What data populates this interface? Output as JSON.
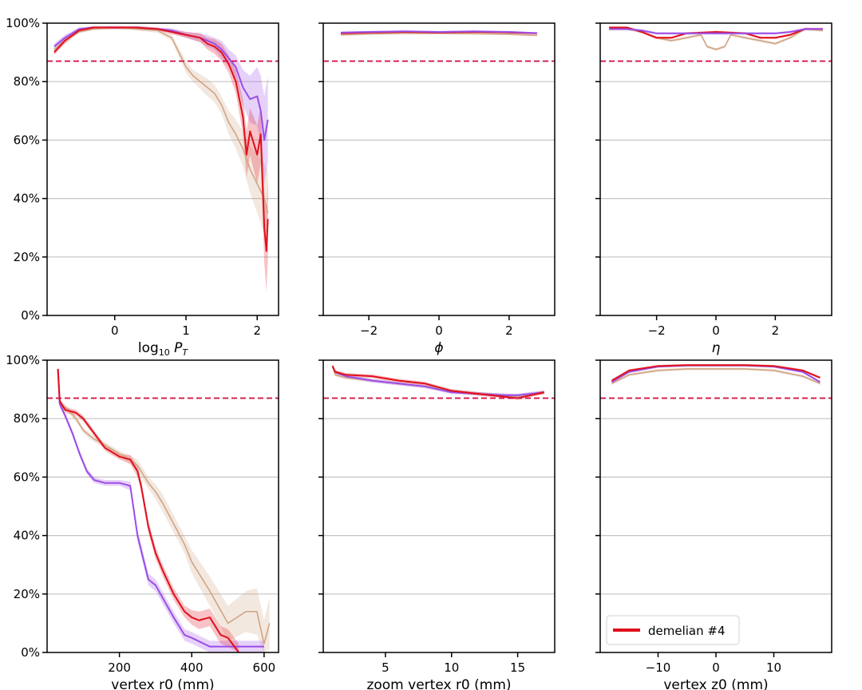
{
  "colors": {
    "red": "#e0101c",
    "purple": "#9b4de8",
    "tan": "#d0a484",
    "reference": "#d4164a",
    "grid": "#c4c4c4"
  },
  "legend": {
    "label": "demelian #4",
    "panel": 5,
    "position": "lower-left"
  },
  "chart_data": [
    {
      "type": "line",
      "xlabel": "log₁₀ P_T",
      "xlim": [
        -0.95,
        2.3
      ],
      "ylim": [
        0,
        100
      ],
      "xticks": [
        0,
        1,
        2
      ],
      "yticks": [
        0,
        20,
        40,
        60,
        80,
        100
      ],
      "show_y_ticklabels": true,
      "grid": "y",
      "reference_y": 87,
      "series": [
        {
          "color_key": "tan",
          "x": [
            -0.85,
            -0.7,
            -0.5,
            -0.3,
            0,
            0.3,
            0.6,
            0.8,
            0.9,
            1.0,
            1.1,
            1.2,
            1.3,
            1.4,
            1.5,
            1.6,
            1.7,
            1.8,
            1.9,
            2.0,
            2.1,
            2.15
          ],
          "y": [
            91,
            94,
            97,
            98,
            98.5,
            98,
            97.5,
            95,
            90,
            85,
            82,
            80,
            78,
            76,
            72,
            66,
            62,
            57,
            50,
            45,
            40,
            35
          ],
          "band": [
            1,
            1,
            0.5,
            0.5,
            0.5,
            0.5,
            0.8,
            1,
            1.5,
            2,
            2,
            2.5,
            3,
            3,
            3,
            4,
            5,
            6,
            8,
            10,
            12,
            14
          ]
        },
        {
          "color_key": "purple",
          "x": [
            -0.85,
            -0.7,
            -0.5,
            -0.3,
            0,
            0.3,
            0.6,
            0.8,
            1.0,
            1.2,
            1.3,
            1.4,
            1.5,
            1.6,
            1.7,
            1.8,
            1.9,
            2.0,
            2.05,
            2.1,
            2.15
          ],
          "y": [
            92,
            95,
            98,
            98.5,
            98.5,
            98.5,
            98,
            97.5,
            96,
            95,
            94,
            93,
            91,
            88,
            85,
            78,
            74,
            75,
            70,
            60,
            67
          ],
          "band": [
            1,
            1,
            0.5,
            0.5,
            0.5,
            0.5,
            0.5,
            0.8,
            1,
            1.5,
            2,
            2,
            3,
            3,
            4,
            6,
            8,
            10,
            12,
            15,
            15
          ]
        },
        {
          "color_key": "red",
          "x": [
            -0.85,
            -0.7,
            -0.5,
            -0.3,
            0,
            0.3,
            0.6,
            0.8,
            1.0,
            1.2,
            1.3,
            1.4,
            1.5,
            1.6,
            1.7,
            1.8,
            1.85,
            1.9,
            2.0,
            2.05,
            2.1,
            2.13,
            2.15
          ],
          "y": [
            90,
            94,
            97.5,
            98.5,
            98.5,
            98.5,
            98,
            97,
            96,
            95,
            93,
            92,
            90,
            86,
            80,
            68,
            55,
            63,
            55,
            62,
            30,
            22,
            33
          ],
          "band": [
            1,
            1,
            0.5,
            0.5,
            0.5,
            0.5,
            0.5,
            0.8,
            1,
            1.5,
            2,
            2.5,
            3,
            3,
            4,
            6,
            8,
            8,
            10,
            10,
            12,
            14,
            14
          ]
        }
      ]
    },
    {
      "type": "line",
      "xlabel": "ϕ",
      "xlim": [
        -3.3,
        3.3
      ],
      "ylim": [
        0,
        100
      ],
      "xticks": [
        -2,
        0,
        2
      ],
      "yticks": [
        0,
        20,
        40,
        60,
        80,
        100
      ],
      "show_y_ticklabels": false,
      "grid": "y",
      "reference_y": 87,
      "series": [
        {
          "color_key": "tan",
          "x": [
            -2.8,
            -2,
            -1,
            0,
            1,
            2,
            2.8
          ],
          "y": [
            96,
            96.3,
            96.5,
            96.5,
            96.4,
            96.2,
            95.8
          ],
          "band": [
            0.3,
            0.3,
            0.3,
            0.3,
            0.3,
            0.3,
            0.3
          ]
        },
        {
          "color_key": "red",
          "x": [
            -2.8,
            -2,
            -1,
            0,
            1,
            2,
            2.8
          ],
          "y": [
            96.5,
            96.8,
            97,
            96.8,
            97,
            96.8,
            96.5
          ],
          "band": [
            0.3,
            0.3,
            0.3,
            0.3,
            0.3,
            0.3,
            0.3
          ]
        },
        {
          "color_key": "purple",
          "x": [
            -2.8,
            -2,
            -1,
            0,
            1,
            2,
            2.8
          ],
          "y": [
            96.8,
            97,
            97.2,
            97,
            97.2,
            97,
            96.6
          ],
          "band": [
            0.3,
            0.3,
            0.3,
            0.3,
            0.3,
            0.3,
            0.3
          ]
        }
      ]
    },
    {
      "type": "line",
      "xlabel": "η",
      "xlim": [
        -3.9,
        3.9
      ],
      "ylim": [
        0,
        100
      ],
      "xticks": [
        -2,
        0,
        2
      ],
      "yticks": [
        0,
        20,
        40,
        60,
        80,
        100
      ],
      "show_y_ticklabels": false,
      "grid": "y",
      "reference_y": 87,
      "series": [
        {
          "color_key": "tan",
          "x": [
            -3.6,
            -3,
            -2.5,
            -2,
            -1.5,
            -1,
            -0.5,
            -0.3,
            0,
            0.3,
            0.5,
            1,
            1.5,
            2,
            2.5,
            3,
            3.6
          ],
          "y": [
            98,
            98,
            97,
            95,
            94,
            95,
            96,
            92,
            91,
            92,
            96,
            95,
            94,
            93,
            95,
            98,
            97.5
          ],
          "band": [
            0.5,
            0.5,
            0.5,
            0.5,
            0.5,
            0.5,
            0.5,
            0.5,
            0.5,
            0.5,
            0.5,
            0.5,
            0.5,
            0.5,
            0.5,
            0.5,
            0.5
          ]
        },
        {
          "color_key": "red",
          "x": [
            -3.6,
            -3,
            -2.5,
            -2,
            -1.5,
            -1,
            0,
            1,
            1.5,
            2,
            2.5,
            3,
            3.6
          ],
          "y": [
            98.5,
            98.5,
            97,
            95,
            95,
            96.5,
            97,
            96.5,
            95,
            95,
            96,
            98,
            98
          ],
          "band": [
            0.4,
            0.4,
            0.4,
            0.4,
            0.4,
            0.4,
            0.4,
            0.4,
            0.4,
            0.4,
            0.4,
            0.4,
            0.4
          ]
        },
        {
          "color_key": "purple",
          "x": [
            -3.6,
            -3,
            -2.5,
            -2,
            -1,
            0,
            1,
            2,
            2.5,
            3,
            3.6
          ],
          "y": [
            98,
            98,
            97.5,
            96.5,
            96.5,
            96.5,
            96.5,
            96.5,
            97,
            98,
            98
          ],
          "band": [
            0.4,
            0.4,
            0.4,
            0.4,
            0.4,
            0.4,
            0.4,
            0.4,
            0.4,
            0.4,
            0.4
          ]
        }
      ]
    },
    {
      "type": "line",
      "xlabel": "vertex r0 (mm)",
      "xlim": [
        0,
        640
      ],
      "ylim": [
        0,
        100
      ],
      "xticks": [
        200,
        400,
        600
      ],
      "yticks": [
        0,
        20,
        40,
        60,
        80,
        100
      ],
      "show_y_ticklabels": true,
      "grid": "y",
      "reference_y": 87,
      "series": [
        {
          "color_key": "tan",
          "x": [
            30,
            35,
            50,
            80,
            100,
            130,
            160,
            200,
            230,
            250,
            280,
            300,
            320,
            350,
            380,
            400,
            450,
            500,
            550,
            580,
            600,
            615
          ],
          "y": [
            97,
            85,
            84,
            80,
            76,
            73,
            71,
            68,
            66,
            64,
            58,
            55,
            51,
            44,
            37,
            31,
            21,
            10,
            14,
            14,
            3,
            10
          ],
          "band": [
            1,
            1,
            1,
            1,
            1,
            1,
            1,
            1,
            1.5,
            2,
            2,
            2.5,
            3,
            3,
            3,
            4,
            5,
            6,
            7,
            8,
            8,
            9
          ]
        },
        {
          "color_key": "purple",
          "x": [
            30,
            35,
            50,
            70,
            90,
            110,
            130,
            160,
            200,
            230,
            250,
            280,
            300,
            350,
            380,
            400,
            450,
            500,
            550,
            600
          ],
          "y": [
            97,
            85,
            81,
            75,
            68,
            62,
            59,
            58,
            58,
            57,
            40,
            25,
            23,
            12,
            6,
            5,
            2,
            2,
            2,
            2
          ],
          "band": [
            1,
            1,
            1,
            1,
            1,
            1,
            1,
            1,
            1,
            1.5,
            2,
            2,
            2,
            2,
            2,
            2,
            2,
            2,
            2,
            2
          ]
        },
        {
          "color_key": "red",
          "x": [
            30,
            35,
            50,
            80,
            100,
            130,
            160,
            200,
            230,
            250,
            260,
            280,
            300,
            320,
            350,
            380,
            400,
            420,
            450,
            480,
            500,
            530
          ],
          "y": [
            97,
            86,
            83,
            82,
            80,
            75,
            70,
            67,
            66,
            62,
            57,
            43,
            34,
            28,
            20,
            14,
            12,
            11,
            12,
            6,
            5,
            0
          ],
          "band": [
            1,
            1,
            1,
            1,
            1,
            1,
            1,
            1,
            1.5,
            2,
            2,
            2,
            2,
            2,
            2,
            2,
            2.5,
            3,
            3,
            3,
            3,
            3
          ]
        }
      ]
    },
    {
      "type": "line",
      "xlabel": "zoom vertex r0 (mm)",
      "xlim": [
        0.3,
        17.8
      ],
      "ylim": [
        0,
        100
      ],
      "xticks": [
        5,
        10,
        15
      ],
      "yticks": [
        0,
        20,
        40,
        60,
        80,
        100
      ],
      "show_y_ticklabels": false,
      "grid": "y",
      "reference_y": 87,
      "series": [
        {
          "color_key": "tan",
          "x": [
            1,
            1.2,
            2,
            4,
            6,
            8,
            10,
            12,
            14,
            15,
            16,
            17
          ],
          "y": [
            98,
            95,
            94,
            93,
            92,
            91,
            89.5,
            88.5,
            88,
            87.5,
            88.5,
            89
          ],
          "band": [
            0.6,
            0.6,
            0.6,
            0.6,
            0.6,
            0.6,
            0.6,
            0.6,
            0.6,
            0.6,
            0.6,
            0.6
          ]
        },
        {
          "color_key": "purple",
          "x": [
            1,
            1.2,
            2,
            4,
            6,
            8,
            10,
            12,
            14,
            15,
            16,
            17
          ],
          "y": [
            98,
            96,
            94.5,
            93,
            92,
            91,
            89,
            88.5,
            88,
            88,
            88.5,
            89
          ],
          "band": [
            0.6,
            0.6,
            0.6,
            0.6,
            0.6,
            0.6,
            0.6,
            0.6,
            0.6,
            0.6,
            0.6,
            0.6
          ]
        },
        {
          "color_key": "red",
          "x": [
            1,
            1.2,
            2,
            4,
            6,
            8,
            10,
            12,
            14,
            15,
            16,
            17
          ],
          "y": [
            98,
            96,
            95,
            94.5,
            93,
            92,
            89.5,
            88.5,
            87.5,
            87,
            88,
            89
          ],
          "band": [
            0.6,
            0.6,
            0.6,
            0.6,
            0.6,
            0.6,
            0.6,
            0.6,
            0.6,
            0.6,
            0.6,
            0.6
          ]
        }
      ]
    },
    {
      "type": "line",
      "xlabel": "vertex z0 (mm)",
      "xlim": [
        -20,
        20
      ],
      "ylim": [
        0,
        100
      ],
      "xticks": [
        -10,
        0,
        10
      ],
      "yticks": [
        0,
        20,
        40,
        60,
        80,
        100
      ],
      "show_y_ticklabels": false,
      "grid": "y",
      "reference_y": 87,
      "series": [
        {
          "color_key": "tan",
          "x": [
            -18,
            -15,
            -10,
            -5,
            0,
            5,
            10,
            15,
            18
          ],
          "y": [
            92,
            95,
            96.5,
            97,
            97,
            97,
            96.5,
            94.5,
            92
          ],
          "band": [
            0.5,
            0.5,
            0.5,
            0.5,
            0.5,
            0.5,
            0.5,
            0.5,
            0.5
          ]
        },
        {
          "color_key": "purple",
          "x": [
            -18,
            -15,
            -10,
            -5,
            0,
            5,
            10,
            15,
            18
          ],
          "y": [
            92.5,
            96,
            97.8,
            98.2,
            98.2,
            98.2,
            97.8,
            96,
            92.5
          ],
          "band": [
            0.4,
            0.4,
            0.4,
            0.4,
            0.4,
            0.4,
            0.4,
            0.4,
            0.4
          ]
        },
        {
          "color_key": "red",
          "x": [
            -18,
            -15,
            -10,
            -5,
            0,
            5,
            10,
            15,
            18
          ],
          "y": [
            93,
            96.5,
            98,
            98.3,
            98.3,
            98.3,
            98,
            96.5,
            94
          ],
          "band": [
            0.4,
            0.4,
            0.4,
            0.4,
            0.4,
            0.4,
            0.4,
            0.4,
            0.4
          ]
        }
      ]
    }
  ]
}
